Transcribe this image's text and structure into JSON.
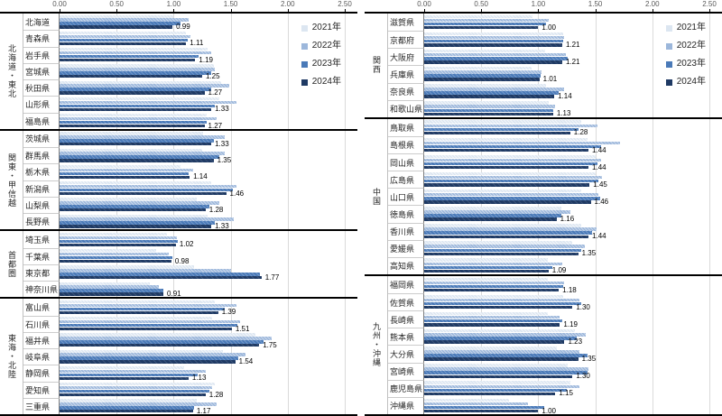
{
  "series_colors": [
    "#dce6f1",
    "#9cb7db",
    "#4a7ab8",
    "#1f3a64"
  ],
  "legend": {
    "items": [
      {
        "label": "2021年",
        "color": "#dce6f1"
      },
      {
        "label": "2022年",
        "color": "#9cb7db"
      },
      {
        "label": "2023年",
        "color": "#4a7ab8"
      },
      {
        "label": "2024年",
        "color": "#1f3a64"
      }
    ]
  },
  "chart_data": [
    {
      "type": "bar",
      "orientation": "horizontal",
      "title": "",
      "xlim": [
        0,
        2.5
      ],
      "x_tick_labels": [
        "0.00",
        "0.50",
        "1.00",
        "1.50",
        "2.00",
        "2.50"
      ],
      "grid": true,
      "legend_position": "top-right",
      "series": [
        "2021年",
        "2022年",
        "2023年",
        "2024年"
      ],
      "data_labels_on_series": "2024年",
      "groups": [
        {
          "region": "北海道・東北",
          "prefectures": [
            {
              "name": "北海道",
              "values": [
                1.0,
                1.13,
                1.06,
                0.99
              ]
            },
            {
              "name": "青森県",
              "values": [
                1.11,
                1.15,
                1.12,
                1.11
              ]
            },
            {
              "name": "岩手県",
              "values": [
                1.3,
                1.33,
                1.22,
                1.19
              ]
            },
            {
              "name": "宮城県",
              "values": [
                1.35,
                1.36,
                1.33,
                1.25
              ]
            },
            {
              "name": "秋田県",
              "values": [
                1.42,
                1.49,
                1.33,
                1.27
              ]
            },
            {
              "name": "山形県",
              "values": [
                1.4,
                1.55,
                1.36,
                1.33
              ]
            },
            {
              "name": "福島県",
              "values": [
                1.29,
                1.38,
                1.29,
                1.27
              ]
            }
          ]
        },
        {
          "region": "関東・甲信越",
          "prefectures": [
            {
              "name": "茨城県",
              "values": [
                1.26,
                1.45,
                1.35,
                1.33
              ]
            },
            {
              "name": "群馬県",
              "values": [
                1.25,
                1.45,
                1.4,
                1.35
              ]
            },
            {
              "name": "栃木県",
              "values": [
                1.06,
                1.17,
                1.13,
                1.14
              ]
            },
            {
              "name": "新潟県",
              "values": [
                1.33,
                1.55,
                1.52,
                1.46
              ]
            },
            {
              "name": "山梨県",
              "values": [
                1.2,
                1.4,
                1.31,
                1.28
              ]
            },
            {
              "name": "長野県",
              "values": [
                1.3,
                1.53,
                1.36,
                1.33
              ]
            }
          ]
        },
        {
          "region": "首都圏",
          "prefectures": [
            {
              "name": "埼玉県",
              "values": [
                0.94,
                1.03,
                1.04,
                1.02
              ]
            },
            {
              "name": "千葉県",
              "values": [
                0.85,
                0.96,
                0.99,
                0.98
              ]
            },
            {
              "name": "東京都",
              "values": [
                1.18,
                1.5,
                1.76,
                1.77
              ]
            },
            {
              "name": "神奈川県",
              "values": [
                0.79,
                0.87,
                0.91,
                0.91
              ]
            }
          ]
        },
        {
          "region": "東海・北陸",
          "prefectures": [
            {
              "name": "富山県",
              "values": [
                1.36,
                1.55,
                1.45,
                1.39
              ]
            },
            {
              "name": "石川県",
              "values": [
                1.34,
                1.58,
                1.56,
                1.51
              ]
            },
            {
              "name": "福井県",
              "values": [
                1.72,
                1.86,
                1.79,
                1.75
              ]
            },
            {
              "name": "岐阜県",
              "values": [
                1.43,
                1.63,
                1.57,
                1.54
              ]
            },
            {
              "name": "静岡県",
              "values": [
                1.09,
                1.28,
                1.21,
                1.13
              ]
            },
            {
              "name": "愛知県",
              "values": [
                1.36,
                1.34,
                1.31,
                1.28
              ]
            },
            {
              "name": "三重県",
              "values": [
                1.2,
                1.38,
                1.18,
                1.17
              ]
            }
          ]
        }
      ]
    },
    {
      "type": "bar",
      "orientation": "horizontal",
      "title": "",
      "xlim": [
        0,
        2.5
      ],
      "x_tick_labels": [
        "0.00",
        "0.50",
        "1.00",
        "1.50",
        "2.00",
        "2.50"
      ],
      "grid": true,
      "legend_position": "top-right",
      "series": [
        "2021年",
        "2022年",
        "2023年",
        "2024年"
      ],
      "data_labels_on_series": "2024年",
      "groups": [
        {
          "region": "関西",
          "prefectures": [
            {
              "name": "滋賀県",
              "values": [
                0.95,
                1.09,
                1.07,
                1.0
              ]
            },
            {
              "name": "京都府",
              "values": [
                1.22,
                1.23,
                1.22,
                1.21
              ]
            },
            {
              "name": "大阪府",
              "values": [
                1.06,
                1.24,
                1.26,
                1.21
              ]
            },
            {
              "name": "兵庫県",
              "values": [
                0.94,
                1.03,
                1.02,
                1.01
              ]
            },
            {
              "name": "奈良県",
              "values": [
                1.07,
                1.23,
                1.18,
                1.14
              ]
            },
            {
              "name": "和歌山県",
              "values": [
                1.09,
                1.15,
                1.13,
                1.13
              ]
            }
          ]
        },
        {
          "region": "中国",
          "prefectures": [
            {
              "name": "鳥取県",
              "values": [
                1.38,
                1.52,
                1.35,
                1.28
              ]
            },
            {
              "name": "島根県",
              "values": [
                1.43,
                1.72,
                1.55,
                1.44
              ]
            },
            {
              "name": "岡山県",
              "values": [
                1.5,
                1.55,
                1.52,
                1.44
              ]
            },
            {
              "name": "広島県",
              "values": [
                1.5,
                1.56,
                1.53,
                1.45
              ]
            },
            {
              "name": "山口県",
              "values": [
                1.38,
                1.53,
                1.54,
                1.46
              ]
            },
            {
              "name": "徳島県",
              "values": [
                1.2,
                1.28,
                1.2,
                1.16
              ]
            },
            {
              "name": "香川県",
              "values": [
                1.38,
                1.51,
                1.47,
                1.44
              ]
            },
            {
              "name": "愛媛県",
              "values": [
                1.3,
                1.41,
                1.38,
                1.35
              ]
            },
            {
              "name": "高知県",
              "values": [
                1.08,
                1.21,
                1.12,
                1.09
              ]
            }
          ]
        },
        {
          "region": "九州・沖縄",
          "prefectures": [
            {
              "name": "福岡県",
              "values": [
                1.08,
                1.23,
                1.22,
                1.18
              ]
            },
            {
              "name": "佐賀県",
              "values": [
                1.22,
                1.36,
                1.38,
                1.3
              ]
            },
            {
              "name": "長崎県",
              "values": [
                1.08,
                1.19,
                1.21,
                1.19
              ]
            },
            {
              "name": "熊本県",
              "values": [
                1.32,
                1.42,
                1.34,
                1.23
              ]
            },
            {
              "name": "大分県",
              "values": [
                1.16,
                1.36,
                1.43,
                1.35
              ]
            },
            {
              "name": "宮崎県",
              "values": [
                1.26,
                1.44,
                1.43,
                1.3
              ]
            },
            {
              "name": "鹿児島県",
              "values": [
                1.28,
                1.36,
                1.25,
                1.15
              ]
            },
            {
              "name": "沖縄県",
              "values": [
                0.74,
                0.91,
                1.05,
                1.0
              ]
            }
          ]
        }
      ]
    }
  ]
}
